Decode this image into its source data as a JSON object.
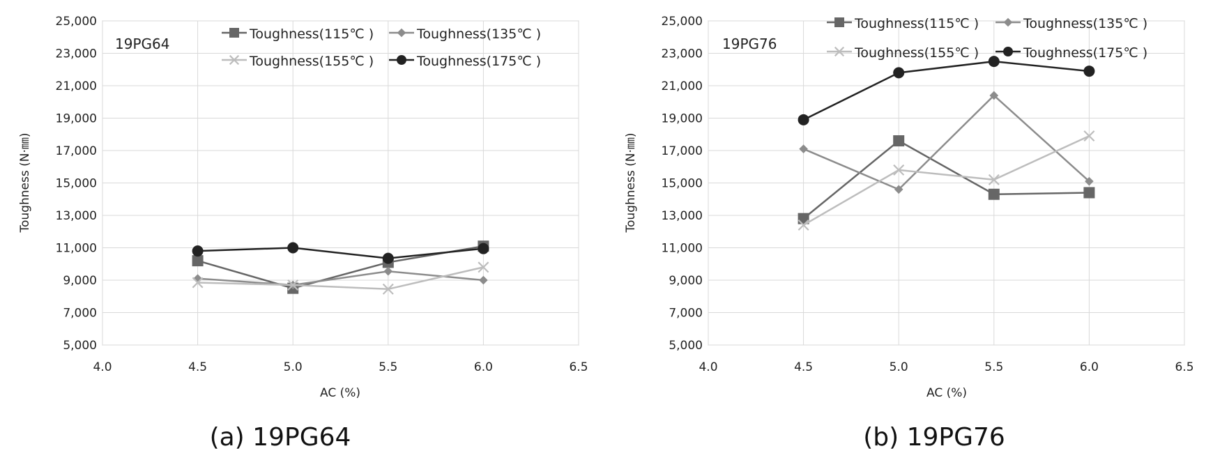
{
  "chart_data": [
    {
      "type": "line",
      "title": "19PG64",
      "caption": "(a) 19PG64",
      "xlabel": "AC (%)",
      "ylabel": "Toughness (N·㎜)",
      "xlim": [
        4.0,
        6.5
      ],
      "ylim": [
        5000,
        25000
      ],
      "xticks": [
        4.0,
        4.5,
        5.0,
        5.5,
        6.0,
        6.5
      ],
      "xtick_labels": [
        "4.0",
        "4.5",
        "5.0",
        "5.5",
        "6.0",
        "6.5"
      ],
      "yticks": [
        5000,
        7000,
        9000,
        11000,
        13000,
        15000,
        17000,
        19000,
        21000,
        23000,
        25000
      ],
      "ytick_labels": [
        "5,000",
        "7,000",
        "9,000",
        "11,000",
        "13,000",
        "15,000",
        "17,000",
        "19,000",
        "21,000",
        "23,000",
        "25,000"
      ],
      "grid": true,
      "legend_position": "top",
      "x": [
        4.5,
        5.0,
        5.5,
        6.0
      ],
      "series": [
        {
          "name": "Toughness(115℃ )",
          "marker": "square",
          "color": "#666666",
          "values": [
            10200,
            8500,
            10100,
            11100
          ]
        },
        {
          "name": "Toughness(135℃ )",
          "marker": "diamond",
          "color": "#8c8c8c",
          "values": [
            9100,
            8700,
            9550,
            9000
          ]
        },
        {
          "name": "Toughness(155℃ )",
          "marker": "x",
          "color": "#bdbdbd",
          "values": [
            8850,
            8700,
            8450,
            9800
          ]
        },
        {
          "name": "Toughness(175℃ )",
          "marker": "circle",
          "color": "#222222",
          "values": [
            10800,
            11000,
            10350,
            10950
          ]
        }
      ]
    },
    {
      "type": "line",
      "title": "19PG76",
      "caption": "(b) 19PG76",
      "xlabel": "AC (%)",
      "ylabel": "Toughness (N·㎜)",
      "xlim": [
        4.0,
        6.5
      ],
      "ylim": [
        5000,
        25000
      ],
      "xticks": [
        4.0,
        4.5,
        5.0,
        5.5,
        6.0,
        6.5
      ],
      "xtick_labels": [
        "4.0",
        "4.5",
        "5.0",
        "5.5",
        "6.0",
        "6.5"
      ],
      "yticks": [
        5000,
        7000,
        9000,
        11000,
        13000,
        15000,
        17000,
        19000,
        21000,
        23000,
        25000
      ],
      "ytick_labels": [
        "5,000",
        "7,000",
        "9,000",
        "11,000",
        "13,000",
        "15,000",
        "17,000",
        "19,000",
        "21,000",
        "23,000",
        "25,000"
      ],
      "grid": true,
      "legend_position": "top",
      "x": [
        4.5,
        5.0,
        5.5,
        6.0
      ],
      "series": [
        {
          "name": "Toughness(115℃ )",
          "marker": "square",
          "color": "#666666",
          "values": [
            12800,
            17600,
            14300,
            14400
          ]
        },
        {
          "name": "Toughness(135℃ )",
          "marker": "diamond",
          "color": "#8c8c8c",
          "values": [
            17100,
            14600,
            20400,
            15100
          ]
        },
        {
          "name": "Toughness(155℃ )",
          "marker": "x",
          "color": "#bdbdbd",
          "values": [
            12400,
            15800,
            15200,
            17900
          ]
        },
        {
          "name": "Toughness(175℃ )",
          "marker": "circle",
          "color": "#222222",
          "values": [
            18900,
            21800,
            22500,
            21900
          ]
        }
      ]
    }
  ]
}
